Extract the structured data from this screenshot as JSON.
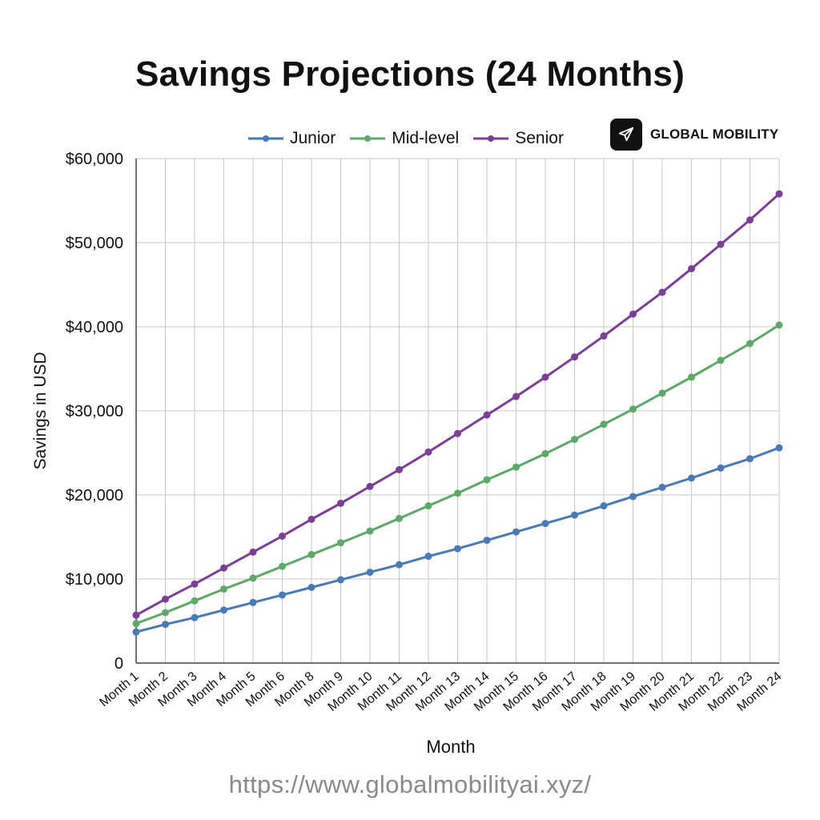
{
  "chart_data": {
    "type": "line",
    "title": "Savings Projections (24 Months)",
    "xlabel": "Month",
    "ylabel": "Savings in USD",
    "categories": [
      "Month 1",
      "Month 2",
      "Month 3",
      "Month 4",
      "Month 5",
      "Month 6",
      "Month 8",
      "Month 9",
      "Month 10",
      "Month 11",
      "Month 12",
      "Month 13",
      "Month 14",
      "Month 15",
      "Month 16",
      "Month 17",
      "Month 18",
      "Month 19",
      "Month 20",
      "Month 21",
      "Month 22",
      "Month 23",
      "Month 24"
    ],
    "ylim": [
      0,
      60000
    ],
    "yticks": [
      0,
      10000,
      20000,
      30000,
      40000,
      50000,
      60000
    ],
    "ytick_labels": [
      "0",
      "$10,000",
      "$20,000",
      "$30,000",
      "$40,000",
      "$50,000",
      "$60,000"
    ],
    "grid": true,
    "legend_position": "top",
    "series": [
      {
        "name": "Junior",
        "color": "#4a7ab5",
        "values": [
          3700,
          4600,
          5400,
          6300,
          7200,
          8100,
          9000,
          9900,
          10800,
          11700,
          12700,
          13600,
          14600,
          15600,
          16600,
          17600,
          18700,
          19800,
          20900,
          22000,
          23200,
          24300,
          25600
        ]
      },
      {
        "name": "Mid-level",
        "color": "#5ea86a",
        "values": [
          4700,
          6000,
          7400,
          8800,
          10100,
          11500,
          12900,
          14300,
          15700,
          17200,
          18700,
          20200,
          21800,
          23300,
          24900,
          26600,
          28400,
          30200,
          32100,
          34000,
          36000,
          38000,
          40200
        ]
      },
      {
        "name": "Senior",
        "color": "#7b3f98",
        "values": [
          5700,
          7600,
          9400,
          11300,
          13200,
          15100,
          17100,
          19000,
          21000,
          23000,
          25100,
          27300,
          29500,
          31700,
          34000,
          36400,
          38900,
          41500,
          44100,
          46900,
          49800,
          52700,
          55800
        ]
      }
    ]
  },
  "brand": {
    "name": "GLOBAL MOBILITY",
    "logo_icon": "airplane-icon"
  },
  "footer": {
    "url": "https://www.globalmobilityai.xyz/"
  }
}
